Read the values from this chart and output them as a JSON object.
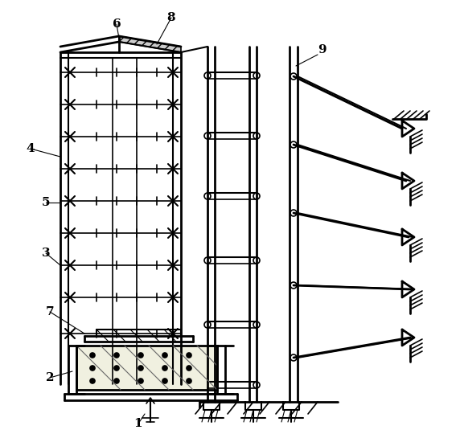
{
  "bg_color": "#ffffff",
  "lw": 1.2,
  "lw_thick": 2.0,
  "lw_med": 1.5,
  "fig_w": 5.72,
  "fig_h": 5.4
}
